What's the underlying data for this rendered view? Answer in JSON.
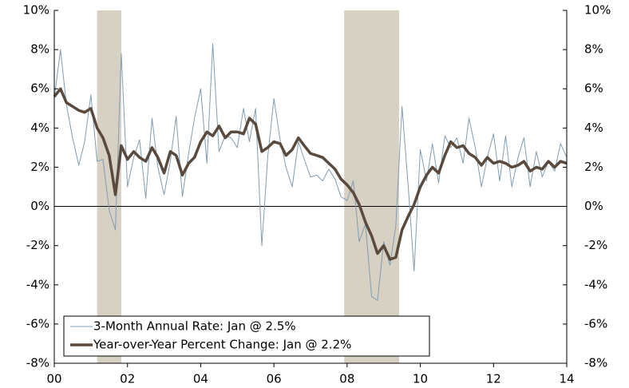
{
  "chart_data": {
    "type": "line",
    "x": [
      2000,
      2000.17,
      2000.33,
      2000.5,
      2000.67,
      2000.83,
      2001,
      2001.17,
      2001.33,
      2001.5,
      2001.67,
      2001.83,
      2002,
      2002.17,
      2002.33,
      2002.5,
      2002.67,
      2002.83,
      2003,
      2003.17,
      2003.33,
      2003.5,
      2003.67,
      2003.83,
      2004,
      2004.17,
      2004.33,
      2004.5,
      2004.67,
      2004.83,
      2005,
      2005.17,
      2005.33,
      2005.5,
      2005.67,
      2005.83,
      2006,
      2006.17,
      2006.33,
      2006.5,
      2006.67,
      2006.83,
      2007,
      2007.17,
      2007.33,
      2007.5,
      2007.67,
      2007.83,
      2008,
      2008.17,
      2008.33,
      2008.5,
      2008.67,
      2008.83,
      2009,
      2009.17,
      2009.33,
      2009.5,
      2009.67,
      2009.83,
      2010,
      2010.17,
      2010.33,
      2010.5,
      2010.67,
      2010.83,
      2011,
      2011.17,
      2011.33,
      2011.5,
      2011.67,
      2011.83,
      2012,
      2012.17,
      2012.33,
      2012.5,
      2012.67,
      2012.83,
      2013,
      2013.17,
      2013.33,
      2013.5,
      2013.67,
      2013.83,
      2014
    ],
    "series": [
      {
        "name": "3-Month Annual Rate: Jan @ 2.5%",
        "color": "#7f9db3",
        "width": 1,
        "values": [
          5.5,
          8.0,
          5.2,
          3.5,
          2.1,
          3.3,
          5.7,
          2.3,
          2.4,
          -0.2,
          -1.2,
          7.8,
          1.0,
          2.5,
          3.4,
          0.4,
          4.5,
          2.0,
          0.6,
          2.3,
          4.6,
          0.5,
          2.7,
          4.5,
          6.0,
          2.2,
          8.3,
          2.8,
          3.6,
          3.5,
          3.0,
          5.0,
          3.3,
          5.0,
          -2.0,
          2.5,
          5.5,
          3.4,
          2.0,
          1.0,
          3.3,
          2.4,
          1.5,
          1.6,
          1.3,
          1.9,
          1.4,
          0.5,
          0.3,
          1.3,
          -1.8,
          -0.9,
          -4.6,
          -4.8,
          -1.8,
          -3.0,
          -1.0,
          5.1,
          1.0,
          -3.3,
          2.9,
          1.3,
          3.2,
          1.2,
          3.6,
          3.0,
          3.5,
          2.2,
          4.5,
          3.0,
          1.0,
          2.5,
          3.7,
          1.3,
          3.6,
          1.0,
          2.5,
          3.5,
          1.0,
          2.8,
          1.5,
          2.3,
          1.8,
          3.2,
          2.5
        ]
      },
      {
        "name": "Year-over-Year Percent Change: Jan @ 2.2%",
        "color": "#5a4a3d",
        "width": 3.5,
        "values": [
          5.6,
          6.0,
          5.3,
          5.1,
          4.9,
          4.8,
          5.0,
          4.0,
          3.5,
          2.6,
          0.6,
          3.1,
          2.4,
          2.8,
          2.5,
          2.3,
          3.0,
          2.5,
          1.7,
          2.8,
          2.6,
          1.6,
          2.2,
          2.5,
          3.3,
          3.8,
          3.6,
          4.1,
          3.5,
          3.8,
          3.8,
          3.7,
          4.5,
          4.2,
          2.8,
          3.0,
          3.3,
          3.2,
          2.6,
          2.9,
          3.5,
          3.1,
          2.7,
          2.6,
          2.5,
          2.2,
          1.9,
          1.4,
          1.1,
          0.7,
          0.1,
          -0.8,
          -1.5,
          -2.4,
          -2.0,
          -2.7,
          -2.6,
          -1.2,
          -0.5,
          0.1,
          1.0,
          1.6,
          2.0,
          1.7,
          2.6,
          3.3,
          3.0,
          3.1,
          2.7,
          2.5,
          2.1,
          2.5,
          2.2,
          2.3,
          2.2,
          2.0,
          2.1,
          2.3,
          1.8,
          2.0,
          1.9,
          2.3,
          2.0,
          2.3,
          2.2
        ]
      }
    ],
    "shaded_periods": [
      [
        2001.17,
        2001.83
      ],
      [
        2007.92,
        2009.42
      ]
    ],
    "shade_color": "#d7d1c3",
    "xlim": [
      2000,
      2014
    ],
    "xticks": [
      {
        "value": 2000,
        "label": "00"
      },
      {
        "value": 2002,
        "label": "02"
      },
      {
        "value": 2004,
        "label": "04"
      },
      {
        "value": 2006,
        "label": "06"
      },
      {
        "value": 2008,
        "label": "08"
      },
      {
        "value": 2010,
        "label": "10"
      },
      {
        "value": 2012,
        "label": "12"
      },
      {
        "value": 2014,
        "label": "14"
      }
    ],
    "ylim": [
      -8,
      10
    ],
    "yticks": [
      {
        "value": -8,
        "label": "-8%"
      },
      {
        "value": -6,
        "label": "-6%"
      },
      {
        "value": -4,
        "label": "-4%"
      },
      {
        "value": -2,
        "label": "-2%"
      },
      {
        "value": 0,
        "label": "0%"
      },
      {
        "value": 2,
        "label": "2%"
      },
      {
        "value": 4,
        "label": "4%"
      },
      {
        "value": 6,
        "label": "6%"
      },
      {
        "value": 8,
        "label": "8%"
      },
      {
        "value": 10,
        "label": "10%"
      }
    ],
    "y2lim": [
      -8,
      10
    ],
    "y2ticks": [
      {
        "value": -8,
        "label": "-8%"
      },
      {
        "value": -6,
        "label": "-6%"
      },
      {
        "value": -4,
        "label": "-4%"
      },
      {
        "value": -2,
        "label": "-2%"
      },
      {
        "value": 0,
        "label": "0%"
      },
      {
        "value": 2,
        "label": "2%"
      },
      {
        "value": 4,
        "label": "4%"
      },
      {
        "value": 6,
        "label": "6%"
      },
      {
        "value": 8,
        "label": "8%"
      },
      {
        "value": 10,
        "label": "10%"
      }
    ],
    "legend": "lower left"
  }
}
